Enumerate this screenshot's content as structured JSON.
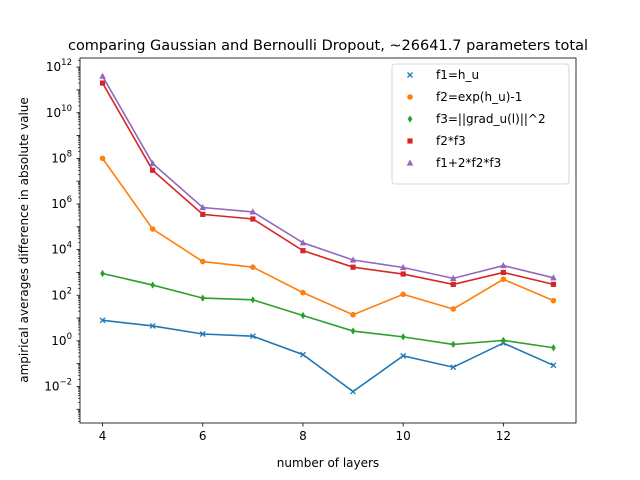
{
  "chart_data": {
    "type": "line",
    "title": "comparing Gaussian and Bernoulli Dropout, ~26641.7 parameters total",
    "xlabel": "number of layers",
    "ylabel": "ampirical averages difference in absolute value",
    "yscale": "log",
    "xlim": [
      3.55,
      13.45
    ],
    "ylim_log10": [
      -3.6,
      12.4
    ],
    "x_ticks": [
      4,
      6,
      8,
      10,
      12
    ],
    "y_ticks": [
      {
        "exp": -2,
        "base": "10",
        "sup": "−2"
      },
      {
        "exp": 0,
        "base": "10",
        "sup": "0"
      },
      {
        "exp": 2,
        "base": "10",
        "sup": "2"
      },
      {
        "exp": 4,
        "base": "10",
        "sup": "4"
      },
      {
        "exp": 6,
        "base": "10",
        "sup": "6"
      },
      {
        "exp": 8,
        "base": "10",
        "sup": "8"
      },
      {
        "exp": 10,
        "base": "10",
        "sup": "10"
      },
      {
        "exp": 12,
        "base": "10",
        "sup": "12"
      }
    ],
    "legend_position": "upper-right",
    "x": [
      4,
      5,
      6,
      7,
      8,
      9,
      10,
      11,
      12,
      13
    ],
    "series": [
      {
        "name": "f1=h_u",
        "color": "#1f77b4",
        "marker": "x",
        "values": [
          8,
          4.5,
          2,
          1.6,
          0.25,
          0.006,
          0.22,
          0.07,
          0.8,
          0.085
        ]
      },
      {
        "name": "f2=exp(h_u)-1",
        "color": "#ff7f0e",
        "marker": "circle",
        "values": [
          100000000,
          80000,
          3000,
          1700,
          130,
          14,
          110,
          25,
          500,
          58
        ]
      },
      {
        "name": "f3=||grad_u(l)||^2",
        "color": "#2ca02c",
        "marker": "diamond",
        "values": [
          900,
          280,
          75,
          63,
          13,
          2.7,
          1.5,
          0.7,
          1.05,
          0.5
        ]
      },
      {
        "name": "f2*f3",
        "color": "#d62728",
        "marker": "square",
        "values": [
          200000000000,
          30000000,
          350000,
          220000,
          9000,
          1700,
          850,
          300,
          1000,
          300
        ]
      },
      {
        "name": "f1+2*f2*f3",
        "color": "#9467bd",
        "marker": "triangle",
        "values": [
          400000000000,
          60000000,
          700000,
          450000,
          20000,
          3500,
          1650,
          550,
          2000,
          580
        ]
      }
    ]
  }
}
